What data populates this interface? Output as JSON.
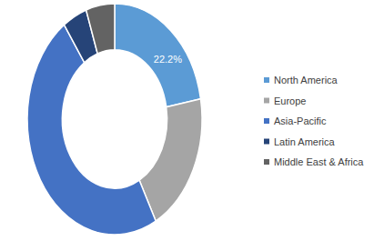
{
  "chart_data": {
    "type": "donut",
    "categories": [
      "North America",
      "Europe",
      "Asia-Pacific",
      "Latin America",
      "Middle East & Africa"
    ],
    "values": [
      22.2,
      20.0,
      48.0,
      4.5,
      5.3
    ],
    "value_labels": [
      "22.2%",
      null,
      null,
      null,
      null
    ],
    "colors": [
      "#5b9bd5",
      "#a5a5a5",
      "#4472c4",
      "#264478",
      "#636363"
    ],
    "data_labels": true,
    "legend": "right"
  }
}
